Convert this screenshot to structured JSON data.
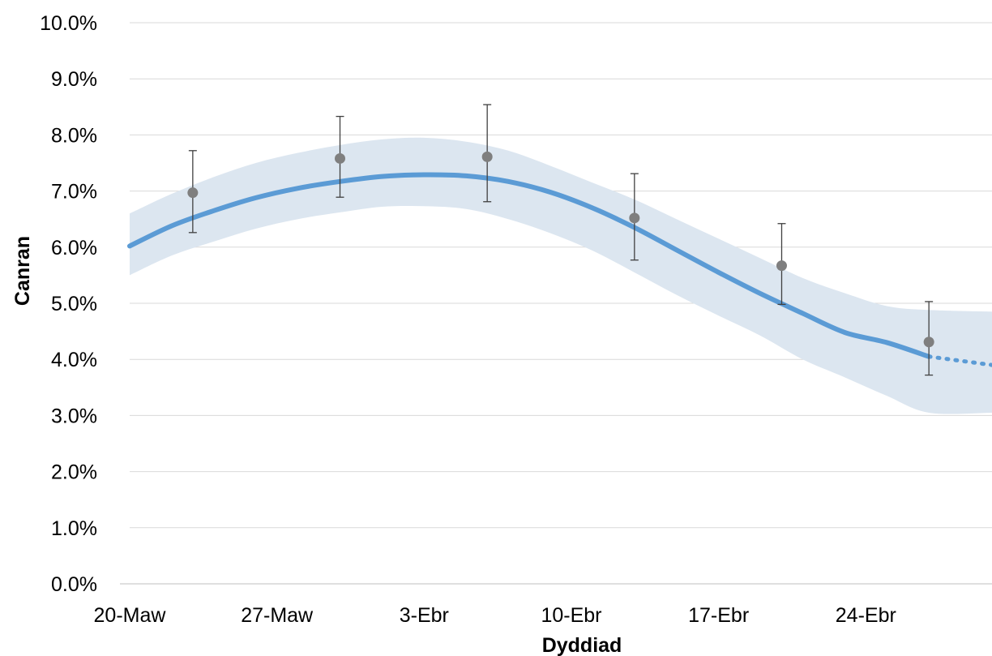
{
  "chart_data": {
    "type": "line",
    "title": "",
    "xlabel": "Dyddiad",
    "ylabel": "Canran",
    "x_tick_labels": [
      "20-Maw",
      "27-Maw",
      "3-Ebr",
      "10-Ebr",
      "17-Ebr",
      "24-Ebr"
    ],
    "y_tick_labels": [
      "0.0%",
      "1.0%",
      "2.0%",
      "3.0%",
      "4.0%",
      "5.0%",
      "6.0%",
      "7.0%",
      "8.0%",
      "9.0%",
      "10.0%"
    ],
    "ylim": [
      0,
      10
    ],
    "xlim": [
      "2021-03-20",
      "2021-04-30"
    ],
    "y_unit": "percent",
    "grid": "horizontal",
    "legend": "none",
    "colors": {
      "trend": "#5b9bd5",
      "band": "#dce6f0",
      "points": "#7f7f7f",
      "error_bars": "#404040",
      "grid": "#d9d9d9",
      "axis": "#bfbfbf"
    },
    "series": [
      {
        "kind": "modelled_trend",
        "x": [
          "2021-03-20",
          "2021-03-22",
          "2021-03-24",
          "2021-03-26",
          "2021-03-28",
          "2021-03-30",
          "2021-04-01",
          "2021-04-03",
          "2021-04-05",
          "2021-04-07",
          "2021-04-09",
          "2021-04-11",
          "2021-04-13",
          "2021-04-15",
          "2021-04-17",
          "2021-04-19",
          "2021-04-21",
          "2021-04-23",
          "2021-04-25",
          "2021-04-27"
        ],
        "y": [
          6.02,
          6.38,
          6.65,
          6.88,
          7.05,
          7.17,
          7.26,
          7.29,
          7.27,
          7.17,
          6.98,
          6.7,
          6.35,
          5.95,
          5.55,
          5.17,
          4.82,
          4.48,
          4.3,
          4.05
        ],
        "lower": [
          5.5,
          5.85,
          6.1,
          6.33,
          6.5,
          6.62,
          6.72,
          6.73,
          6.68,
          6.5,
          6.25,
          5.94,
          5.55,
          5.15,
          4.78,
          4.42,
          4.0,
          3.68,
          3.35,
          3.05
        ],
        "upper": [
          6.6,
          6.95,
          7.25,
          7.5,
          7.68,
          7.82,
          7.92,
          7.95,
          7.88,
          7.72,
          7.45,
          7.15,
          6.85,
          6.5,
          6.15,
          5.8,
          5.45,
          5.18,
          4.95,
          4.88
        ],
        "projected_from": "2021-04-27"
      },
      {
        "kind": "estimates",
        "x": [
          "2021-03-23",
          "2021-03-30",
          "2021-04-06",
          "2021-04-13",
          "2021-04-20",
          "2021-04-27"
        ],
        "y": [
          6.97,
          7.58,
          7.61,
          6.52,
          5.67,
          4.31
        ],
        "err_low": [
          6.26,
          6.89,
          6.81,
          5.77,
          4.98,
          3.72
        ],
        "err_high": [
          7.72,
          8.33,
          8.54,
          7.31,
          6.42,
          5.03
        ]
      }
    ]
  }
}
